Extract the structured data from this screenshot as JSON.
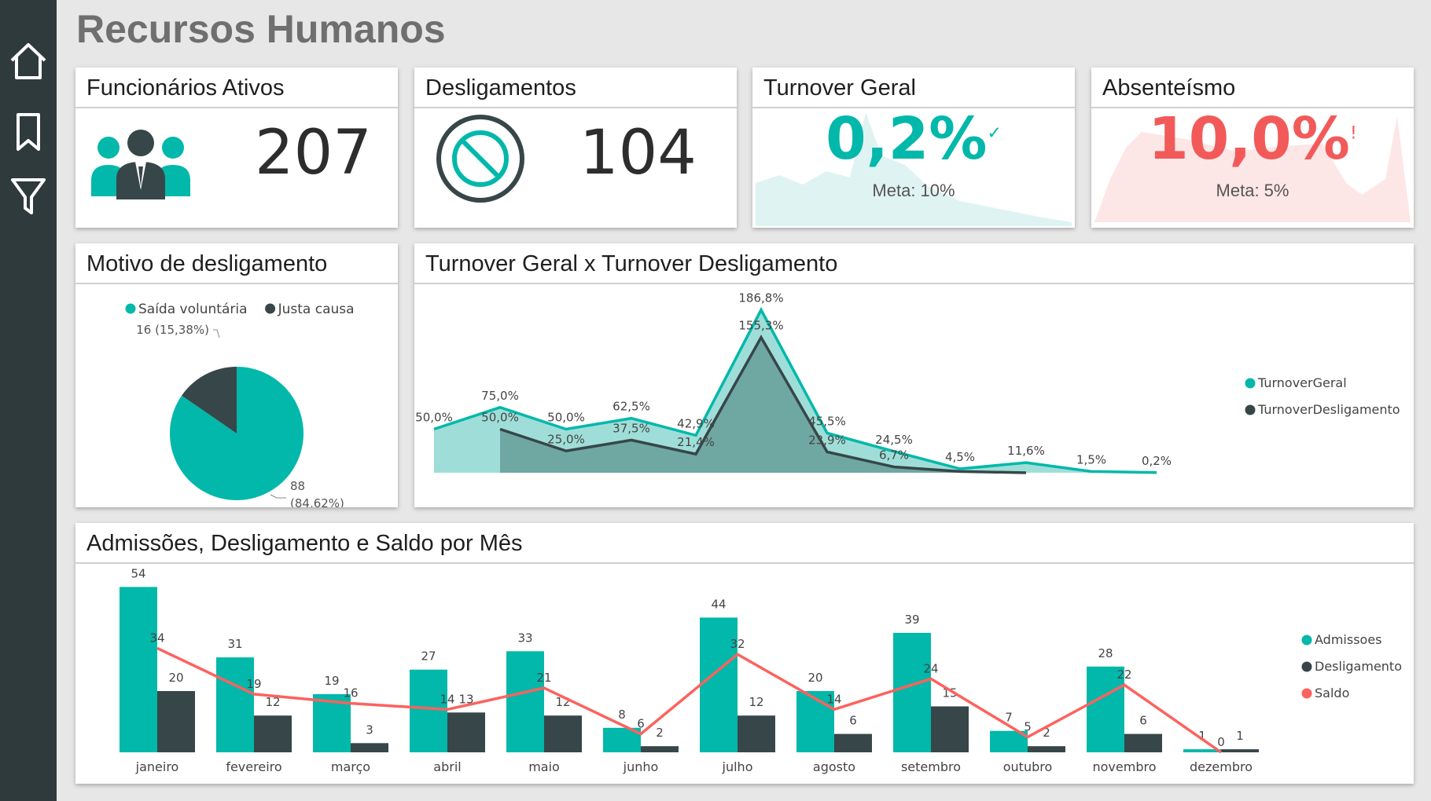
{
  "title": "Recursos Humanos",
  "sidebar": {
    "icons": [
      "home-icon",
      "bookmark-icon",
      "filter-icon"
    ]
  },
  "kpis": {
    "ativos": {
      "title": "Funcionários Ativos",
      "value": "207",
      "icon": "people-icon"
    },
    "desligamentos": {
      "title": "Desligamentos",
      "value": "104",
      "icon": "prohibited-icon"
    },
    "turnover": {
      "title": "Turnover Geral",
      "value": "0,2%",
      "meta": "Meta: 10%",
      "status_glyph": "✓",
      "color": "#01b8aa"
    },
    "absenteismo": {
      "title": "Absenteísmo",
      "value": "10,0%",
      "meta": "Meta: 5%",
      "status_glyph": "!",
      "color": "#f25a5a"
    }
  },
  "pie": {
    "title": "Motivo de desligamento",
    "legend": [
      {
        "label": "Saída voluntária",
        "color": "#01b8aa"
      },
      {
        "label": "Justa causa",
        "color": "#374649"
      }
    ],
    "chart_data": {
      "type": "pie",
      "slices": [
        {
          "name": "Saída voluntária",
          "value": 88,
          "label": "88",
          "pct": "(84,62%)"
        },
        {
          "name": "Justa causa",
          "value": 16,
          "label": "16 (15,38%)"
        }
      ]
    }
  },
  "turnover_chart": {
    "title": "Turnover Geral x Turnover Desligamento",
    "chart_data": {
      "type": "area",
      "series": [
        {
          "name": "TurnoverGeral",
          "color": "#01b8aa",
          "values": [
            50.0,
            75.0,
            50.0,
            62.5,
            42.9,
            186.8,
            45.5,
            24.5,
            4.5,
            11.6,
            1.5,
            0.2
          ],
          "labels": [
            "50,0%",
            "75,0%",
            "50,0%",
            "62,5%",
            "42,9%",
            "186,8%",
            "45,5%",
            "24,5%",
            "4,5%",
            "11,6%",
            "1,5%",
            "0,2%"
          ]
        },
        {
          "name": "TurnoverDesligamento",
          "color": "#374649",
          "values": [
            null,
            50.0,
            25.0,
            37.5,
            21.4,
            155.3,
            23.9,
            6.7,
            1.5,
            0.0,
            null,
            null
          ],
          "labels": [
            "",
            "50,0%",
            "25,0%",
            "37,5%",
            "21,4%",
            "155,3%",
            "23,9%",
            "6,7%",
            "",
            "",
            "",
            ""
          ]
        }
      ]
    }
  },
  "monthly_chart": {
    "title": "Admissões, Desligamento e Saldo por Mês",
    "chart_data": {
      "type": "bar",
      "categories": [
        "janeiro",
        "fevereiro",
        "março",
        "abril",
        "maio",
        "junho",
        "julho",
        "agosto",
        "setembro",
        "outubro",
        "novembro",
        "dezembro"
      ],
      "series": [
        {
          "name": "Admissoes",
          "color": "#01b8aa",
          "values": [
            54,
            31,
            19,
            27,
            33,
            8,
            44,
            20,
            39,
            7,
            28,
            1
          ]
        },
        {
          "name": "Desligamento",
          "color": "#374649",
          "values": [
            20,
            12,
            3,
            13,
            12,
            2,
            12,
            6,
            15,
            2,
            6,
            1
          ]
        },
        {
          "name": "Saldo",
          "color": "#fd625e",
          "type": "line",
          "values": [
            34,
            19,
            16,
            14,
            21,
            6,
            32,
            14,
            24,
            5,
            22,
            0
          ]
        }
      ],
      "ylim": [
        0,
        60
      ]
    }
  }
}
